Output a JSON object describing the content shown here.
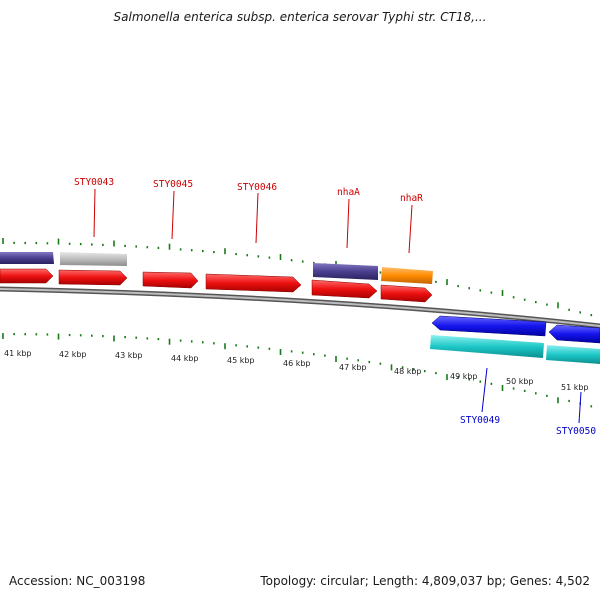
{
  "title": "Salmonella enterica subsp. enterica serovar Typhi str. CT18,...",
  "footer": {
    "accession_label": "Accession:",
    "accession": "NC_003198",
    "topology_label": "Topology:",
    "topology": "circular",
    "length_label": "Length:",
    "length": "4,809,037 bp",
    "genes_label": "Genes:",
    "genes": "4,502"
  },
  "colors": {
    "forward_label": "#cc0000",
    "reverse_label": "#0000cc",
    "tick": "#1a7a1a",
    "backbone": "#7a7a7a"
  },
  "scale": {
    "unit": "kbp",
    "labels": [
      "41 kbp",
      "42 kbp",
      "43 kbp",
      "44 kbp",
      "45 kbp",
      "46 kbp",
      "47 kbp",
      "48 kbp",
      "49 kbp",
      "50 kbp",
      "51 kbp"
    ]
  },
  "gene_labels": {
    "forward": [
      "STY0043",
      "STY0045",
      "STY0046",
      "nhaA",
      "nhaR"
    ],
    "reverse": [
      "STY0049",
      "STY0050"
    ]
  },
  "features": [
    {
      "name": "gene-fwd-1",
      "strand": "forward",
      "color": "#ee1111"
    },
    {
      "name": "gene-fwd-2",
      "strand": "forward",
      "color": "#ee1111"
    },
    {
      "name": "gene-fwd-3",
      "strand": "forward",
      "color": "#ee1111"
    },
    {
      "name": "gene-fwd-4",
      "strand": "forward",
      "color": "#ee1111"
    },
    {
      "name": "gene-fwd-5",
      "strand": "forward",
      "color": "#ee1111"
    },
    {
      "name": "gene-fwd-6",
      "strand": "forward",
      "color": "#ee1111"
    },
    {
      "name": "cds-fwd-purple-1",
      "strand": "forward",
      "color": "#4a3f8f"
    },
    {
      "name": "cds-fwd-grey",
      "strand": "forward",
      "color": "#bdbdbd"
    },
    {
      "name": "cds-fwd-purple-2",
      "strand": "forward",
      "color": "#4a3f8f"
    },
    {
      "name": "cds-fwd-orange",
      "strand": "forward",
      "color": "#ff8c00"
    },
    {
      "name": "gene-rev-1",
      "strand": "reverse",
      "color": "#1515ee"
    },
    {
      "name": "gene-rev-2",
      "strand": "reverse",
      "color": "#1515ee"
    },
    {
      "name": "cds-rev-cyan-1",
      "strand": "reverse",
      "color": "#1ec8c8"
    },
    {
      "name": "cds-rev-cyan-2",
      "strand": "reverse",
      "color": "#1ec8c8"
    }
  ]
}
